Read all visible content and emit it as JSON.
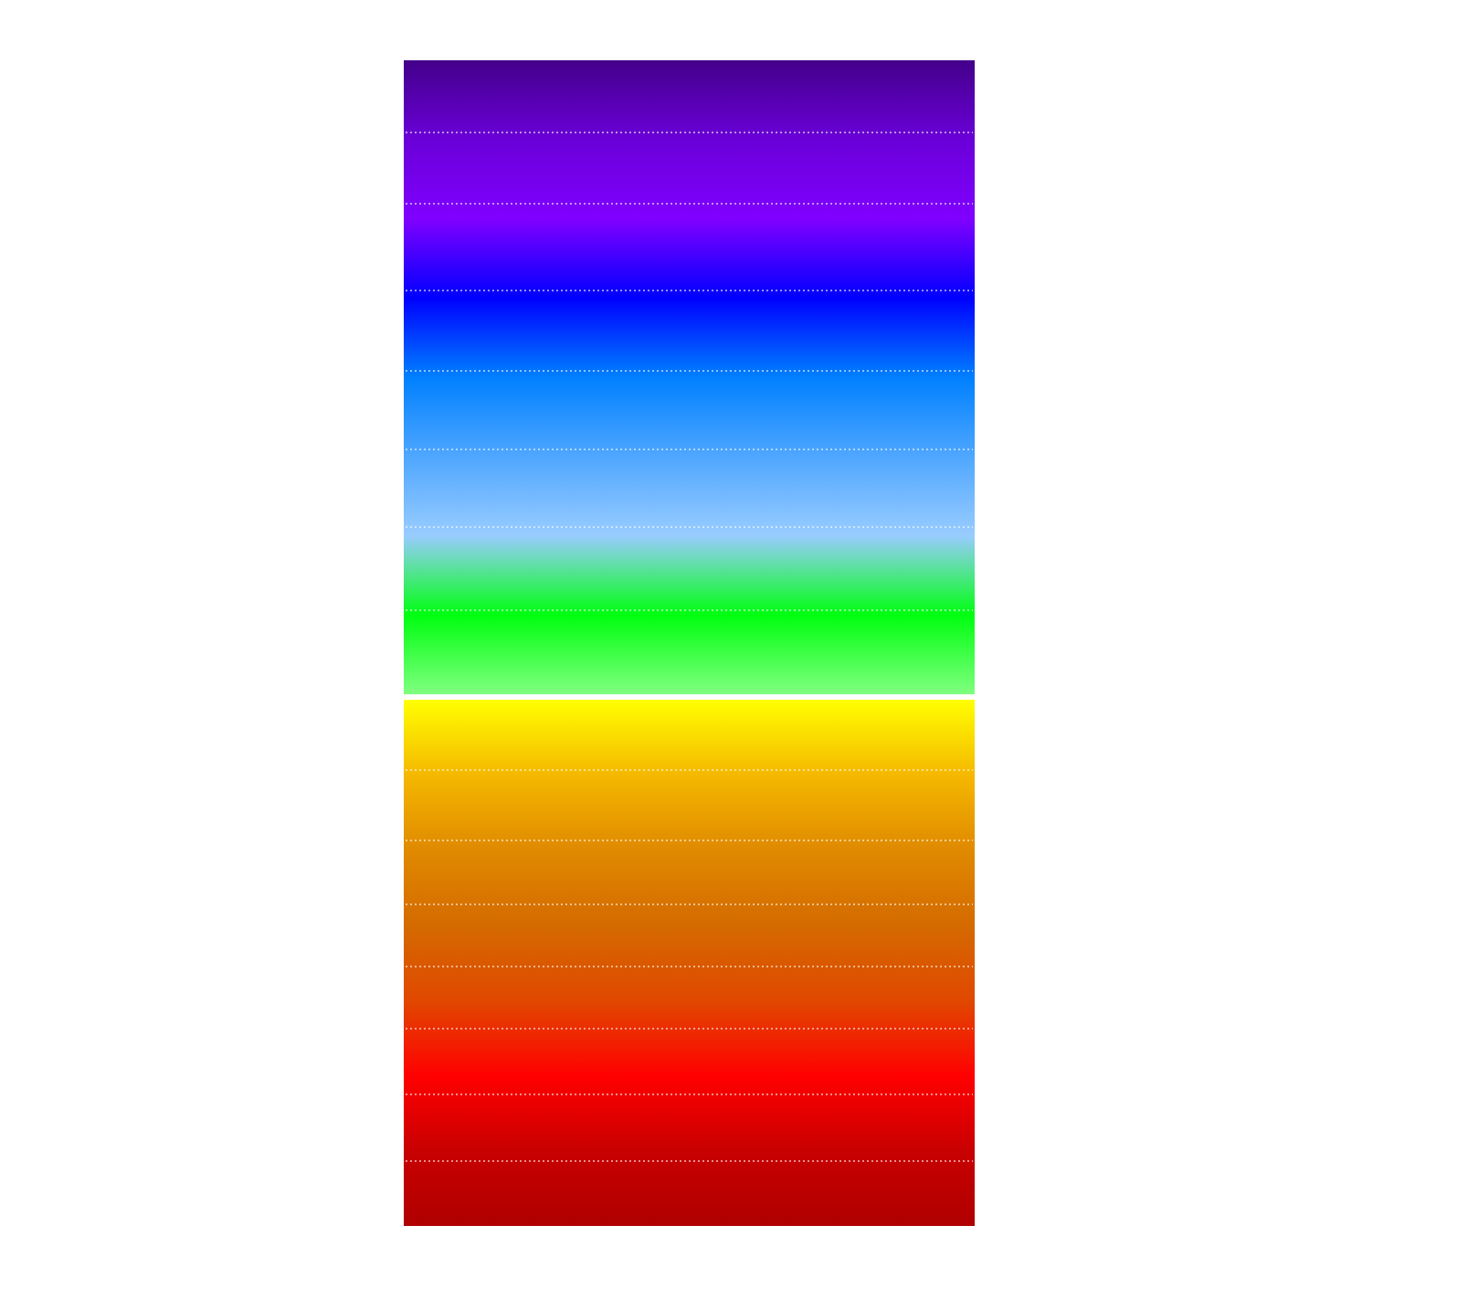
{
  "panels": [
    {
      "colors": [
        "#43008a",
        "#6a00d8",
        "#8000ff",
        "#0000ff",
        "#0080ff",
        "#4fa7ff",
        "#99ccff",
        "#00ff10",
        "#80ff80"
      ]
    },
    {
      "colors": [
        "#ffff00",
        "#f5b800",
        "#e08a00",
        "#d46a00",
        "#e04800",
        "#ff0000",
        "#c80000",
        "#b00000"
      ]
    }
  ]
}
